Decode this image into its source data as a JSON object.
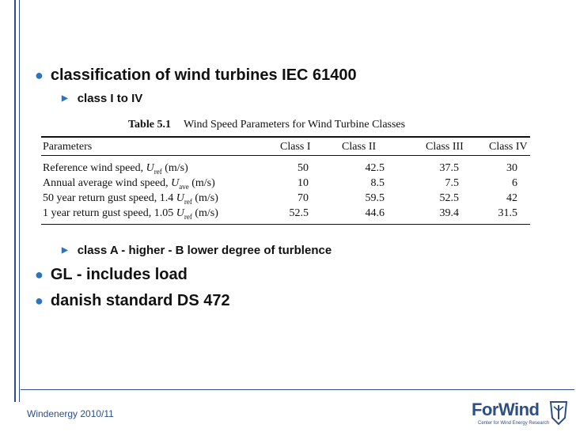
{
  "bullets": [
    {
      "level": 1,
      "text": "classification of wind turbines IEC 61400"
    },
    {
      "level": 2,
      "text": "class I to IV"
    },
    {
      "level": 2,
      "text": "class A - higher - B lower degree of turblence"
    },
    {
      "level": 1,
      "text": "GL - includes load"
    },
    {
      "level": 1,
      "text": "danish standard DS 472"
    }
  ],
  "table": {
    "number": "Table 5.1",
    "title": "Wind Speed Parameters for Wind Turbine Classes",
    "headers": [
      "Parameters",
      "Class I",
      "Class II",
      "Class III",
      "Class IV"
    ],
    "rows": [
      {
        "param": "Reference wind speed,",
        "symbol": "U",
        "sub": "ref",
        "unit": "(m/s)",
        "values": [
          "50",
          "42.5",
          "37.5",
          "30"
        ]
      },
      {
        "param": "Annual average wind speed,",
        "symbol": "U",
        "sub": "ave",
        "unit": "(m/s)",
        "values": [
          "10",
          "8.5",
          "7.5",
          "6"
        ]
      },
      {
        "param": "50 year return gust speed, 1.4",
        "symbol": "U",
        "sub": "ref",
        "unit": "(m/s)",
        "values": [
          "70",
          "59.5",
          "52.5",
          "42"
        ]
      },
      {
        "param": "1 year return gust speed, 1.05",
        "symbol": "U",
        "sub": "ref",
        "unit": "(m/s)",
        "values": [
          "52.5",
          "44.6",
          "39.4",
          "31.5"
        ]
      }
    ]
  },
  "footer": {
    "text": "Windenergy 2010/11"
  },
  "logo": {
    "word": "ForWind",
    "subtitle": "Center for Wind Energy Research"
  },
  "colors": {
    "accent": "#2d4f86",
    "bullet": "#2d75b8"
  }
}
